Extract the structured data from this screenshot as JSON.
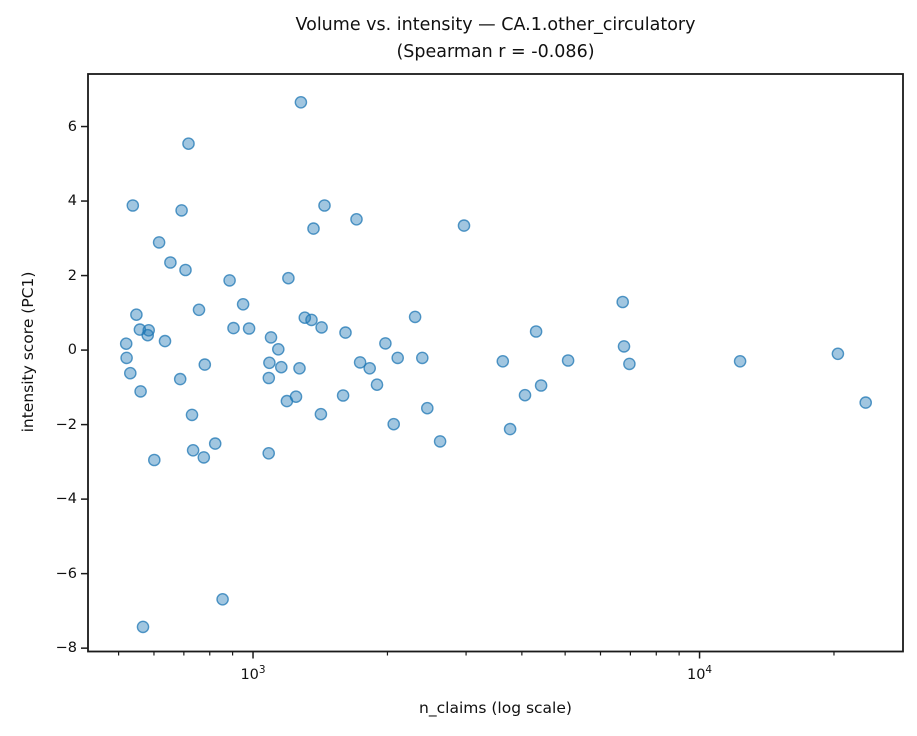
{
  "chart_data": {
    "type": "scatter",
    "title_line1": "Volume vs. intensity — CA.1.other_circulatory",
    "title_line2": "(Spearman r = -0.086)",
    "xlabel": "n_claims (log scale)",
    "ylabel": "intensity score (PC1)",
    "x_scale": "log",
    "grid": false,
    "legend": "none",
    "xlim": [
      427,
      28550
    ],
    "ylim": [
      -8.09,
      7.41
    ],
    "x_major_ticks": [
      {
        "value": 1000,
        "base": "10",
        "exp": "3"
      },
      {
        "value": 10000,
        "base": "10",
        "exp": "4"
      }
    ],
    "x_minor_ticks": [
      500,
      600,
      700,
      800,
      900,
      2000,
      3000,
      4000,
      5000,
      6000,
      7000,
      8000,
      9000,
      20000
    ],
    "y_ticks": [
      {
        "value": 6,
        "label": "6"
      },
      {
        "value": 4,
        "label": "4"
      },
      {
        "value": 2,
        "label": "2"
      },
      {
        "value": 0,
        "label": "0"
      },
      {
        "value": -2,
        "label": "−2"
      },
      {
        "value": -4,
        "label": "−4"
      },
      {
        "value": -6,
        "label": "−6"
      },
      {
        "value": -8,
        "label": "−8"
      }
    ],
    "marker": {
      "color": "#1f77b4",
      "fill_opacity": 0.42,
      "edge_opacity": 0.75,
      "radius": 5.6
    },
    "axis_color": "#1a1a1a",
    "points": [
      [
        1280,
        6.65
      ],
      [
        717,
        5.54
      ],
      [
        538,
        3.88
      ],
      [
        692,
        3.75
      ],
      [
        1446,
        3.88
      ],
      [
        1705,
        3.51
      ],
      [
        1366,
        3.26
      ],
      [
        2968,
        3.34
      ],
      [
        616,
        2.89
      ],
      [
        653,
        2.35
      ],
      [
        706,
        2.15
      ],
      [
        886,
        1.87
      ],
      [
        1200,
        1.93
      ],
      [
        548,
        0.95
      ],
      [
        757,
        1.08
      ],
      [
        950,
        1.23
      ],
      [
        558,
        0.55
      ],
      [
        584,
        0.53
      ],
      [
        581,
        0.4
      ],
      [
        520,
        0.17
      ],
      [
        521,
        -0.21
      ],
      [
        531,
        -0.62
      ],
      [
        560,
        -1.11
      ],
      [
        635,
        0.24
      ],
      [
        904,
        0.59
      ],
      [
        980,
        0.58
      ],
      [
        1306,
        0.87
      ],
      [
        1352,
        0.81
      ],
      [
        1424,
        0.61
      ],
      [
        1611,
        0.47
      ],
      [
        1097,
        0.34
      ],
      [
        1139,
        0.02
      ],
      [
        2306,
        0.89
      ],
      [
        1979,
        0.18
      ],
      [
        687,
        -0.78
      ],
      [
        780,
        -0.39
      ],
      [
        1088,
        -0.34
      ],
      [
        1157,
        -0.46
      ],
      [
        1085,
        -0.75
      ],
      [
        1271,
        -0.49
      ],
      [
        1191,
        -1.37
      ],
      [
        1248,
        -1.25
      ],
      [
        1591,
        -1.22
      ],
      [
        1419,
        -1.72
      ],
      [
        730,
        -1.74
      ],
      [
        2109,
        -0.21
      ],
      [
        2394,
        -0.21
      ],
      [
        1737,
        -0.33
      ],
      [
        1825,
        -0.49
      ],
      [
        1895,
        -0.93
      ],
      [
        2456,
        -1.56
      ],
      [
        2066,
        -1.99
      ],
      [
        2624,
        -2.45
      ],
      [
        3765,
        -2.12
      ],
      [
        601,
        -2.95
      ],
      [
        734,
        -2.69
      ],
      [
        776,
        -2.88
      ],
      [
        823,
        -2.51
      ],
      [
        1084,
        -2.77
      ],
      [
        855,
        -6.69
      ],
      [
        567,
        -7.43
      ],
      [
        6729,
        1.29
      ],
      [
        4305,
        0.5
      ],
      [
        6774,
        0.1
      ],
      [
        3625,
        -0.3
      ],
      [
        5078,
        -0.28
      ],
      [
        6965,
        -0.37
      ],
      [
        12323,
        -0.3
      ],
      [
        20406,
        -0.1
      ],
      [
        4417,
        -0.95
      ],
      [
        4065,
        -1.21
      ],
      [
        23550,
        -1.41
      ]
    ]
  }
}
